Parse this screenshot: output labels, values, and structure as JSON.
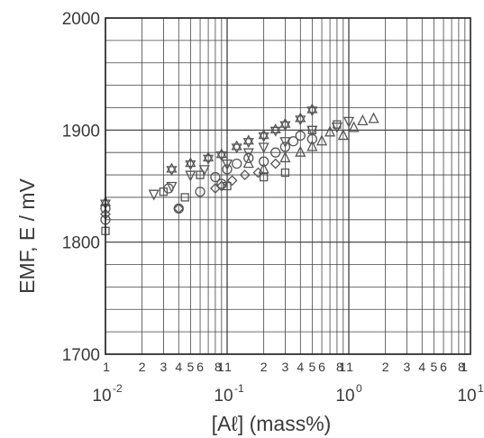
{
  "chart_data": {
    "type": "scatter",
    "title": "",
    "xlabel": "[Aℓ]  (mass%)",
    "ylabel": "EMF,  E / mV",
    "x_scale": "log",
    "xlim": [
      0.01,
      10
    ],
    "ylim": [
      1700,
      2000
    ],
    "y_ticks": [
      "1700",
      "1800",
      "1900",
      "2000"
    ],
    "x_major_ticks": [
      {
        "base": "10",
        "exp": "-2",
        "value": 0.01
      },
      {
        "base": "10",
        "exp": "-1",
        "value": 0.1
      },
      {
        "base": "10",
        "exp": "0",
        "value": 1
      },
      {
        "base": "10",
        "exp": "1",
        "value": 10
      }
    ],
    "x_minor_labels": [
      "1",
      "2",
      "3",
      "4",
      "5",
      "6",
      "8",
      "1"
    ],
    "grid": true,
    "series": [
      {
        "marker": "circle",
        "x": [
          0.01,
          0.01,
          0.033,
          0.04,
          0.06,
          0.08,
          0.09,
          0.1,
          0.12,
          0.15,
          0.2,
          0.25,
          0.3,
          0.35,
          0.4,
          0.5
        ],
        "y": [
          1820,
          1830,
          1848,
          1830,
          1845,
          1858,
          1852,
          1865,
          1870,
          1875,
          1872,
          1880,
          1885,
          1890,
          1895,
          1892
        ]
      },
      {
        "marker": "triangle",
        "x": [
          0.15,
          0.2,
          0.3,
          0.4,
          0.5,
          0.6,
          0.7,
          0.9,
          1.1,
          1.3,
          1.6
        ],
        "y": [
          1870,
          1865,
          1875,
          1880,
          1885,
          1890,
          1898,
          1895,
          1902,
          1908,
          1910
        ]
      },
      {
        "marker": "inverted-triangle",
        "x": [
          0.025,
          0.035,
          0.05,
          0.065,
          0.1,
          0.15,
          0.2,
          0.3,
          0.5,
          0.8,
          1.0
        ],
        "y": [
          1843,
          1850,
          1860,
          1865,
          1870,
          1880,
          1885,
          1890,
          1900,
          1903,
          1908
        ]
      },
      {
        "marker": "square",
        "x": [
          0.01,
          0.03,
          0.045,
          0.06,
          0.1,
          0.2,
          0.3,
          0.5,
          0.8
        ],
        "y": [
          1810,
          1845,
          1840,
          1860,
          1850,
          1858,
          1862,
          1900,
          1905
        ]
      },
      {
        "marker": "star",
        "x": [
          0.01,
          0.035,
          0.05,
          0.07,
          0.09,
          0.12,
          0.15,
          0.2,
          0.25,
          0.3,
          0.4,
          0.5
        ],
        "y": [
          1835,
          1865,
          1870,
          1875,
          1878,
          1885,
          1890,
          1895,
          1900,
          1905,
          1910,
          1918
        ]
      },
      {
        "marker": "diamond",
        "x": [
          0.01,
          0.04,
          0.08,
          0.09,
          0.11,
          0.14,
          0.18,
          0.25
        ],
        "y": [
          1825,
          1830,
          1848,
          1850,
          1855,
          1860,
          1862,
          1870
        ]
      }
    ]
  }
}
